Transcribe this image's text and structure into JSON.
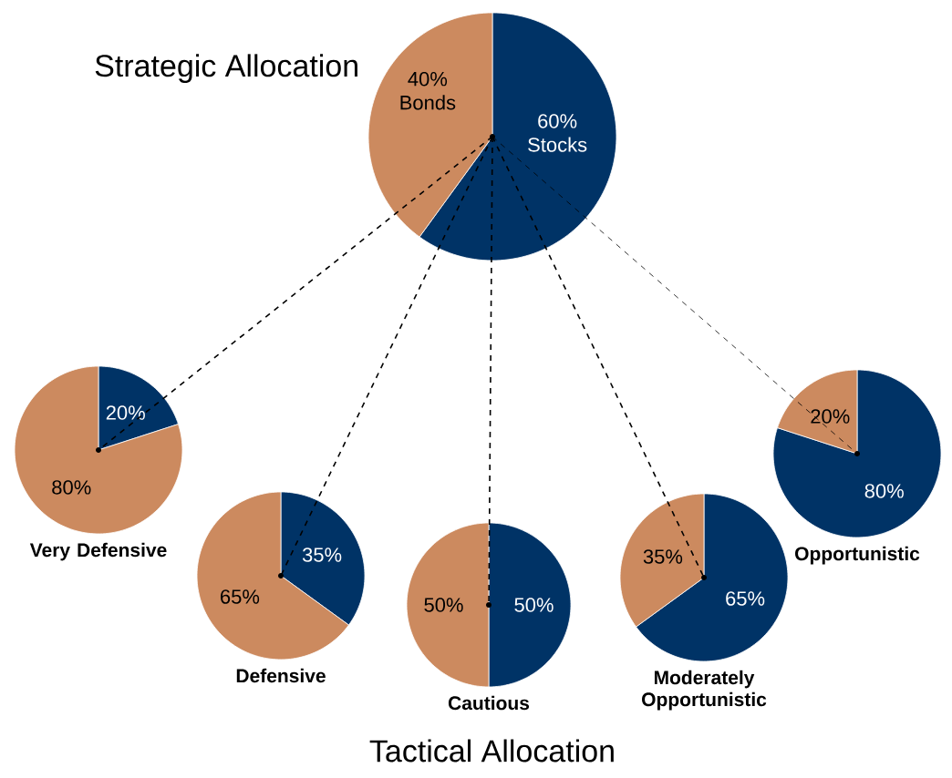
{
  "chart_data": [
    {
      "type": "pie",
      "title": "Strategic Allocation",
      "categories": [
        "Stocks",
        "Bonds"
      ],
      "values": [
        60,
        40
      ],
      "value_labels": [
        "60%",
        "40%"
      ],
      "colors": [
        "#003366",
        "#cc8a5f"
      ]
    },
    {
      "type": "pie",
      "title": "Very Defensive",
      "categories": [
        null,
        null
      ],
      "values": [
        20,
        80
      ],
      "value_labels": [
        "20%",
        "80%"
      ],
      "colors": [
        "#003366",
        "#cc8a5f"
      ]
    },
    {
      "type": "pie",
      "title": "Defensive",
      "categories": [
        null,
        null
      ],
      "values": [
        35,
        65
      ],
      "value_labels": [
        "35%",
        "65%"
      ],
      "colors": [
        "#003366",
        "#cc8a5f"
      ]
    },
    {
      "type": "pie",
      "title": "Cautious",
      "categories": [
        null,
        null
      ],
      "values": [
        50,
        50
      ],
      "value_labels": [
        "50%",
        "50%"
      ],
      "colors": [
        "#003366",
        "#cc8a5f"
      ]
    },
    {
      "type": "pie",
      "title": "Moderately Opportunistic",
      "categories": [
        null,
        null
      ],
      "values": [
        65,
        35
      ],
      "value_labels": [
        "65%",
        "35%"
      ],
      "colors": [
        "#003366",
        "#cc8a5f"
      ]
    },
    {
      "type": "pie",
      "title": "Opportunistic",
      "categories": [
        null,
        null
      ],
      "values": [
        80,
        20
      ],
      "value_labels": [
        "80%",
        "20%"
      ],
      "colors": [
        "#003366",
        "#cc8a5f"
      ]
    },
    {
      "type": "other",
      "title": "Tactical Allocation"
    }
  ]
}
